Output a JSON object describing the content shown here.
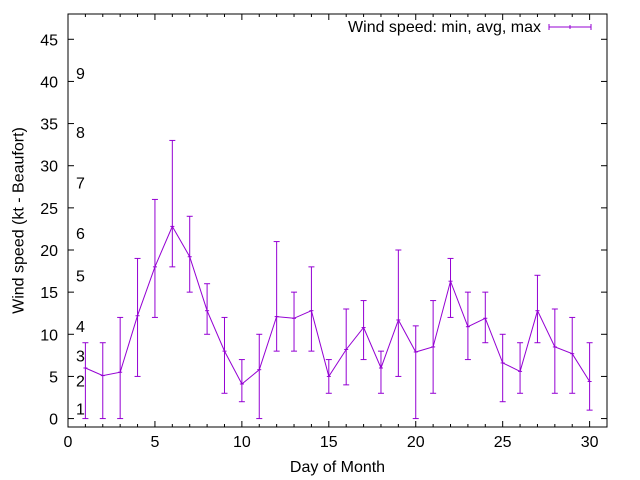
{
  "chart_data": {
    "type": "line",
    "title": "",
    "xlabel": "Day of Month",
    "ylabel": "Wind speed (kt - Beaufort)",
    "xlim": [
      0,
      31
    ],
    "ylim": [
      -1,
      48
    ],
    "xticks": [
      0,
      5,
      10,
      15,
      20,
      25,
      30
    ],
    "yticks": [
      0,
      5,
      10,
      15,
      20,
      25,
      30,
      35,
      40,
      45
    ],
    "grid": false,
    "legend_position": "top-right",
    "series_color": "#9400d3",
    "beaufort_labels": [
      {
        "label": "1",
        "value": 1.2
      },
      {
        "label": "2",
        "value": 4.5
      },
      {
        "label": "3",
        "value": 7.5
      },
      {
        "label": "4",
        "value": 11
      },
      {
        "label": "5",
        "value": 17
      },
      {
        "label": "6",
        "value": 22
      },
      {
        "label": "7",
        "value": 28
      },
      {
        "label": "8",
        "value": 34
      },
      {
        "label": "9",
        "value": 41
      }
    ],
    "series": [
      {
        "name": "Wind speed: min, avg, max",
        "x": [
          1,
          2,
          3,
          4,
          5,
          6,
          7,
          8,
          9,
          10,
          11,
          12,
          13,
          14,
          15,
          16,
          17,
          18,
          19,
          20,
          21,
          22,
          23,
          24,
          25,
          26,
          27,
          28,
          29,
          30
        ],
        "avg": [
          6,
          5.1,
          5.5,
          12.2,
          18,
          22.8,
          19.2,
          12.8,
          8,
          4.1,
          5.8,
          12.1,
          11.9,
          12.8,
          5,
          8.2,
          10.8,
          6,
          11.7,
          7.9,
          8.5,
          16.3,
          10.9,
          11.9,
          6.6,
          5.6,
          12.8,
          8.5,
          7.7,
          4.4
        ],
        "min": [
          0,
          0,
          0,
          5,
          12,
          18,
          15,
          10,
          3,
          2,
          0,
          8,
          8,
          8,
          3,
          4,
          7,
          3,
          5,
          0,
          3,
          12,
          7,
          9,
          2,
          3,
          9,
          3,
          3,
          1
        ],
        "max": [
          9,
          9,
          12,
          19,
          26,
          33,
          24,
          16,
          12,
          7,
          10,
          21,
          15,
          18,
          7,
          13,
          14,
          8,
          20,
          11,
          14,
          19,
          15,
          15,
          10,
          9,
          17,
          13,
          12,
          9
        ]
      }
    ]
  }
}
